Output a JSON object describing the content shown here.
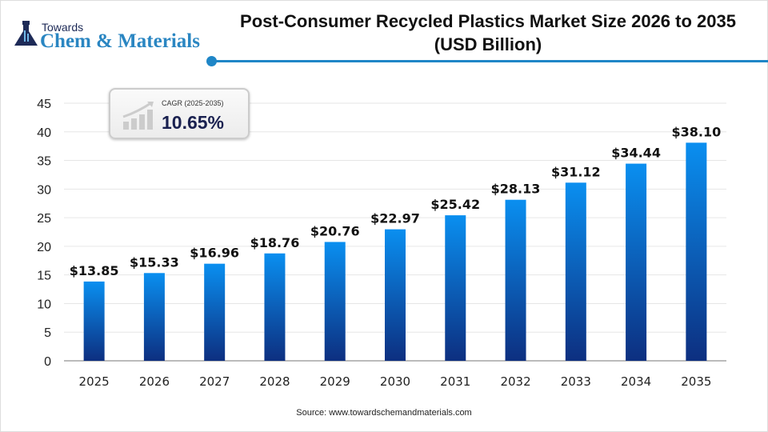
{
  "brand": {
    "line1": "Towards",
    "line2": "Chem & Materials",
    "accent": "#1f86c7"
  },
  "title_line1": "Post-Consumer Recycled Plastics Market Size 2026 to 2035",
  "title_line2": "(USD Billion)",
  "cagr": {
    "label": "CAGR (2025-2035)",
    "value": "10.65%",
    "icon": "growth-chart-icon"
  },
  "source": "Source: www.towardschemandmaterials.com",
  "chart_data": {
    "type": "bar",
    "categories": [
      "2025",
      "2026",
      "2027",
      "2028",
      "2029",
      "2030",
      "2031",
      "2032",
      "2033",
      "2034",
      "2035"
    ],
    "values": [
      13.85,
      15.33,
      16.96,
      18.76,
      20.76,
      22.97,
      25.42,
      28.13,
      31.12,
      34.44,
      38.1
    ],
    "data_labels": [
      "$13.85",
      "$15.33",
      "$16.96",
      "$18.76",
      "$20.76",
      "$22.97",
      "$25.42",
      "$28.13",
      "$31.12",
      "$34.44",
      "$38.10"
    ],
    "yticks": [
      0,
      5,
      10,
      15,
      20,
      25,
      30,
      35,
      40,
      45
    ],
    "ylim": [
      0,
      45
    ],
    "grid": true,
    "bar_color_top": "#0a8ff0",
    "bar_color_bottom": "#0d2f80"
  }
}
